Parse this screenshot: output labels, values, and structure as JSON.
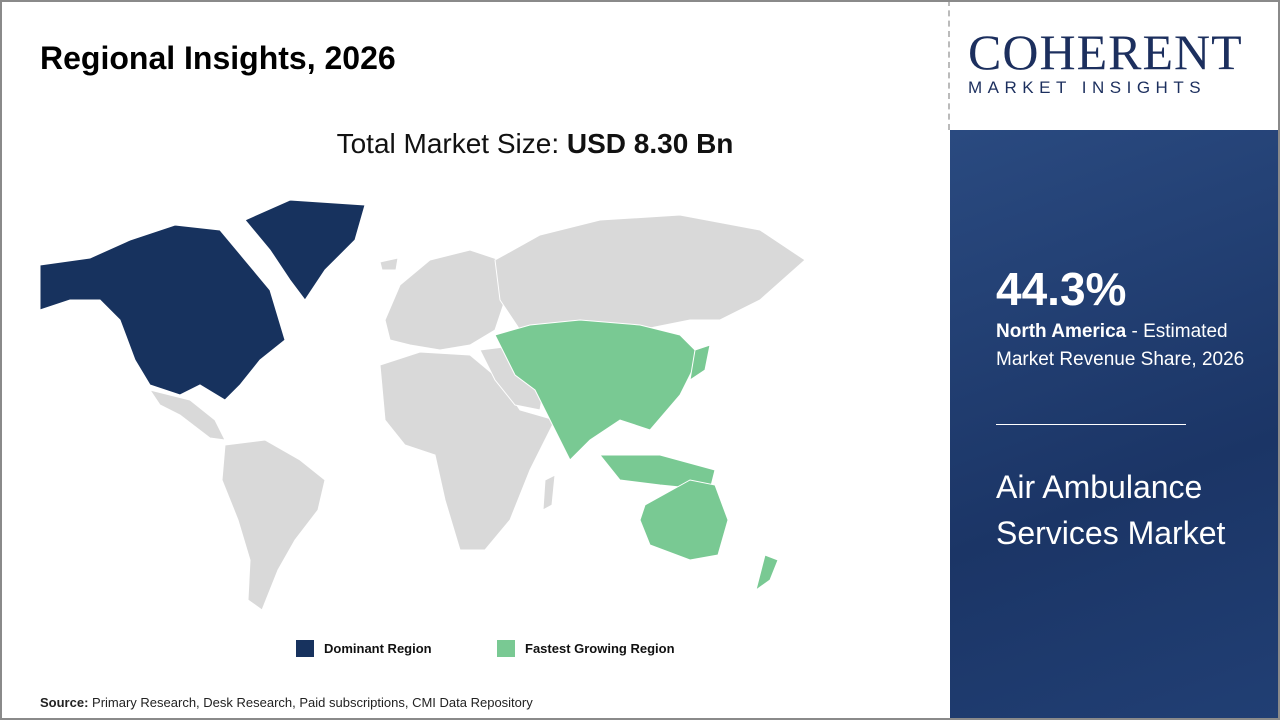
{
  "header": {
    "title": "Regional Insights, 2026",
    "total_label": "Total Market Size: ",
    "total_value": "USD 8.30 Bn"
  },
  "logo": {
    "brand": "COHERENT",
    "tagline": "MARKET INSIGHTS"
  },
  "legend": [
    {
      "label": "Dominant Region",
      "color": "#17325e"
    },
    {
      "label": "Fastest Growing Region",
      "color": "#79c993"
    }
  ],
  "map": {
    "dominant_region": "North America",
    "fastest_growing_region": "Asia Pacific",
    "other_color": "#d9d9d9"
  },
  "source": {
    "label": "Source:",
    "text": " Primary Research, Desk Research, Paid subscriptions, CMI Data Repository"
  },
  "panel": {
    "share": "44.3%",
    "region": "North America",
    "desc": " - Estimated Market Revenue Share, 2026",
    "market": "Air Ambulance Services Market"
  }
}
